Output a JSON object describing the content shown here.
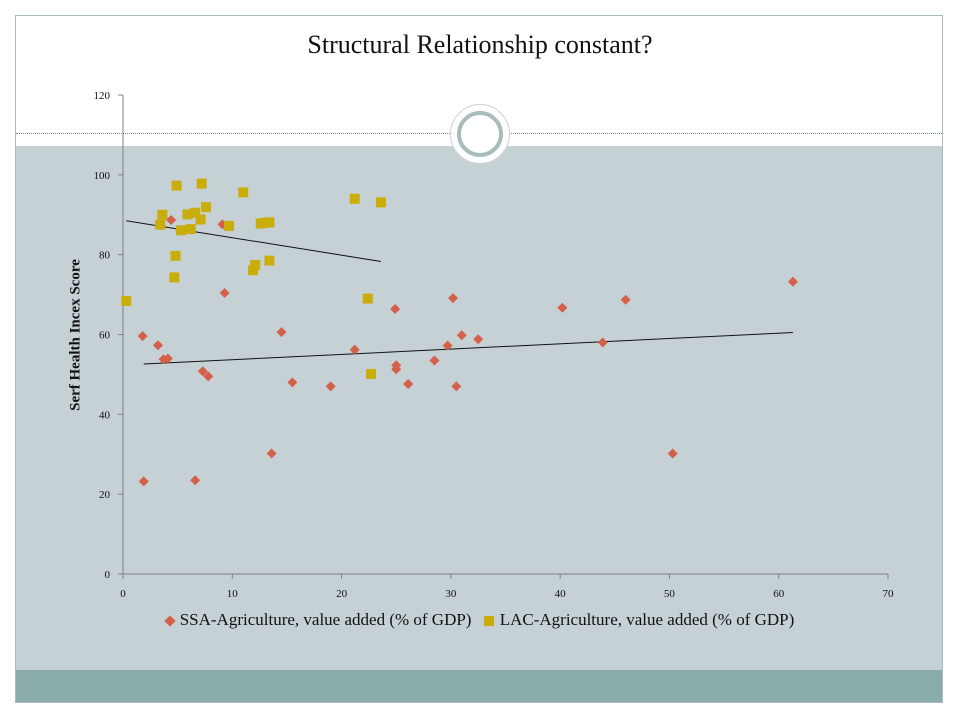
{
  "slide": {
    "colors": {
      "main_band": "#c6d1d6",
      "bottom_band": "#8aacab",
      "ssa": "#d4604a",
      "lac": "#c9ad0b"
    }
  },
  "chart_data": {
    "type": "scatter",
    "title": "Structural Relationship constant?",
    "xlabel": "",
    "ylabel": "Serf Health Incex Score",
    "xlim": [
      0,
      70
    ],
    "ylim": [
      0,
      120
    ],
    "x_ticks": [
      "0",
      "10",
      "20",
      "30",
      "40",
      "50",
      "60",
      "70"
    ],
    "y_ticks": [
      "0",
      "20",
      "40",
      "60",
      "80",
      "100",
      "120"
    ],
    "grid": false,
    "legend_position": "bottom",
    "series": [
      {
        "name": "SSA-Agriculture, value added (% of GDP)",
        "marker": "diamond",
        "color": "#d4604a",
        "points": [
          [
            1.9,
            23.2
          ],
          [
            1.8,
            59.6
          ],
          [
            3.2,
            57.3
          ],
          [
            3.7,
            53.8
          ],
          [
            4.1,
            54
          ],
          [
            4.4,
            88.7
          ],
          [
            6.6,
            23.5
          ],
          [
            7.3,
            50.8
          ],
          [
            7.8,
            49.5
          ],
          [
            9.1,
            87.6
          ],
          [
            9.3,
            70.4
          ],
          [
            13.6,
            30.2
          ],
          [
            14.5,
            60.6
          ],
          [
            15.5,
            48
          ],
          [
            19,
            47
          ],
          [
            21.2,
            56.2
          ],
          [
            24.9,
            66.4
          ],
          [
            25,
            52.3
          ],
          [
            25,
            51.3
          ],
          [
            26.1,
            47.6
          ],
          [
            28.5,
            53.5
          ],
          [
            29.7,
            57.2
          ],
          [
            30.2,
            69.1
          ],
          [
            30.5,
            47
          ],
          [
            31,
            59.8
          ],
          [
            32.5,
            58.8
          ],
          [
            40.2,
            66.7
          ],
          [
            43.9,
            58
          ],
          [
            46,
            68.7
          ],
          [
            50.3,
            30.2
          ],
          [
            61.3,
            73.2
          ]
        ],
        "trendline": [
          [
            1.9,
            52.6
          ],
          [
            61.3,
            60.5
          ]
        ]
      },
      {
        "name": "LAC-Agriculture, value added (% of GDP)",
        "marker": "square",
        "color": "#c9ad0b",
        "points": [
          [
            0.3,
            68.4
          ],
          [
            3.4,
            87.5
          ],
          [
            3.6,
            90
          ],
          [
            4.7,
            74.3
          ],
          [
            4.8,
            79.7
          ],
          [
            4.9,
            97.3
          ],
          [
            5.3,
            86.1
          ],
          [
            5.9,
            90.1
          ],
          [
            6.2,
            86.4
          ],
          [
            6.6,
            90.5
          ],
          [
            7.1,
            88.8
          ],
          [
            7.2,
            97.8
          ],
          [
            7.6,
            91.9
          ],
          [
            9.7,
            87.2
          ],
          [
            11,
            95.6
          ],
          [
            11.9,
            76.1
          ],
          [
            12.1,
            77.4
          ],
          [
            12.6,
            87.8
          ],
          [
            13,
            88
          ],
          [
            13.4,
            88.1
          ],
          [
            13.4,
            78.5
          ],
          [
            21.2,
            94
          ],
          [
            22.4,
            69
          ],
          [
            22.7,
            50.1
          ],
          [
            23.6,
            93.1
          ]
        ],
        "trendline": [
          [
            0.3,
            88.5
          ],
          [
            23.6,
            78.3
          ]
        ]
      }
    ]
  }
}
